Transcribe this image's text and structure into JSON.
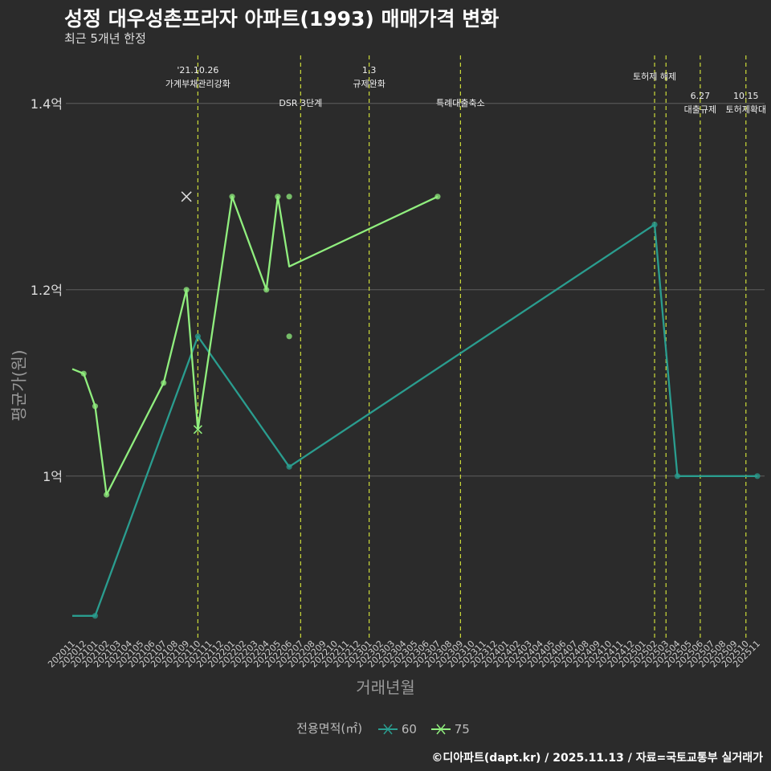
{
  "chart_data": {
    "type": "line",
    "title": "성정 대우성촌프라자 아파트(1993) 매매가격 변화",
    "subtitle": "최근 5개년 한정",
    "xlabel": "거래년월",
    "ylabel": "평균가(원)",
    "caption": "©디아파트(dapt.kr) / 2025.11.13 / 자료=국토교통부 실거래가",
    "legend_title": "전용면적(㎡)",
    "legend_position": "bottom",
    "x_categories": [
      "202011",
      "202012",
      "202101",
      "202102",
      "202103",
      "202104",
      "202105",
      "202106",
      "202107",
      "202108",
      "202109",
      "202110",
      "202111",
      "202112",
      "202201",
      "202202",
      "202203",
      "202204",
      "202205",
      "202206",
      "202207",
      "202208",
      "202209",
      "202210",
      "202211",
      "202212",
      "202301",
      "202302",
      "202303",
      "202304",
      "202305",
      "202306",
      "202307",
      "202308",
      "202309",
      "202310",
      "202311",
      "202312",
      "202401",
      "202402",
      "202403",
      "202404",
      "202405",
      "202406",
      "202407",
      "202408",
      "202409",
      "202410",
      "202411",
      "202412",
      "202501",
      "202502",
      "202503",
      "202504",
      "202505",
      "202506",
      "202507",
      "202508",
      "202509",
      "202510",
      "202511"
    ],
    "y_ticks": [
      1.0,
      1.2,
      1.4
    ],
    "y_tick_labels": [
      "1억",
      "1.2억",
      "1.4억"
    ],
    "ylim": [
      0.83,
      1.455
    ],
    "series": [
      {
        "name": "60",
        "color": "#2a9d8f",
        "line": [
          [
            "202011",
            0.85
          ],
          [
            "202101",
            0.85
          ],
          [
            "202110",
            1.15
          ],
          [
            "202206",
            1.01
          ],
          [
            "202502",
            1.27
          ],
          [
            "202504",
            1.0
          ],
          [
            "202511",
            1.0
          ]
        ],
        "points": [
          [
            "202101",
            0.85
          ],
          [
            "202110",
            1.15
          ],
          [
            "202206",
            1.01
          ],
          [
            "202502",
            1.27
          ],
          [
            "202504",
            1.0
          ],
          [
            "202511",
            1.0
          ]
        ]
      },
      {
        "name": "75",
        "color": "#90ee7e",
        "line": [
          [
            "202011",
            1.115
          ],
          [
            "202012",
            1.11
          ],
          [
            "202101",
            1.075
          ],
          [
            "202102",
            0.98
          ],
          [
            "202107",
            1.1
          ],
          [
            "202109",
            1.2
          ],
          [
            "202110",
            1.05
          ],
          [
            "202201",
            1.3
          ],
          [
            "202204",
            1.2
          ],
          [
            "202205",
            1.3
          ],
          [
            "202206",
            1.225
          ],
          [
            "202307",
            1.3
          ]
        ],
        "points": [
          [
            "202012",
            1.11
          ],
          [
            "202101",
            1.075
          ],
          [
            "202102",
            0.98
          ],
          [
            "202107",
            1.1
          ],
          [
            "202109",
            1.2
          ],
          [
            "202201",
            1.3
          ],
          [
            "202204",
            1.2
          ],
          [
            "202205",
            1.3
          ],
          [
            "202206",
            1.3
          ],
          [
            "202206",
            1.15
          ],
          [
            "202307",
            1.3
          ]
        ],
        "cross_points": [
          [
            "202110",
            1.05
          ]
        ]
      }
    ],
    "extra_marks": [
      {
        "x": "202109",
        "y": 1.3,
        "marker": "x",
        "color": "#dddddd"
      }
    ],
    "events": [
      {
        "x": "202110",
        "label": [
          "'21.10.26",
          "가계부채관리강화"
        ],
        "level": "high"
      },
      {
        "x": "202207",
        "label": [
          "DSR 3단계"
        ],
        "level": "mid"
      },
      {
        "x": "202301",
        "label": [
          "1.3",
          "규제완화"
        ],
        "level": "high"
      },
      {
        "x": "202309",
        "label": [
          "특례대출축소"
        ],
        "level": "mid"
      },
      {
        "x": "202502",
        "label": [
          "토허제 해제"
        ],
        "level": "top"
      },
      {
        "x": "202503",
        "label": [],
        "level": "none"
      },
      {
        "x": "202506",
        "label": [
          "6.27",
          "대출규제"
        ],
        "level": "low"
      },
      {
        "x": "202510",
        "label": [
          "10.15",
          "토허제확대"
        ],
        "level": "low"
      }
    ]
  }
}
